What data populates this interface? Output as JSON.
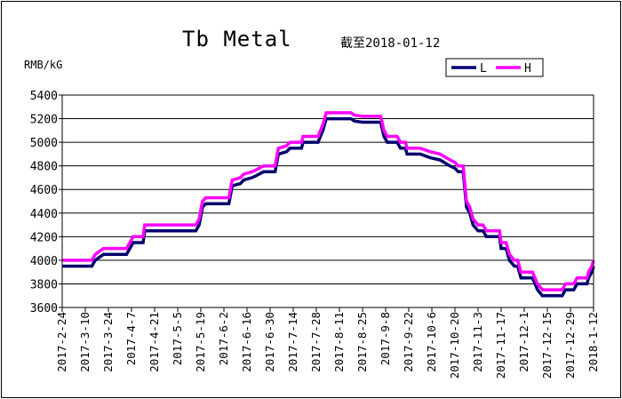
{
  "chart_data": {
    "type": "line",
    "title": "Tb Metal",
    "subtitle": "截至2018-01-12",
    "ylabel": "RMB/kG",
    "xlabel": "",
    "ylim": [
      3600,
      5400
    ],
    "yticks": [
      3600,
      3800,
      4000,
      4200,
      4400,
      4600,
      4800,
      5000,
      5200,
      5400
    ],
    "xlim": [
      "2017-02-24",
      "2018-01-12"
    ],
    "xticks": [
      "2017-2-24",
      "2017-3-10",
      "2017-3-24",
      "2017-4-7",
      "2017-4-21",
      "2017-5-5",
      "2017-5-19",
      "2017-6-2",
      "2017-6-16",
      "2017-6-30",
      "2017-7-14",
      "2017-7-28",
      "2017-8-11",
      "2017-8-25",
      "2017-9-8",
      "2017-9-22",
      "2017-10-6",
      "2017-10-20",
      "2017-11-3",
      "2017-11-17",
      "2017-12-1",
      "2017-12-15",
      "2017-12-29",
      "2018-1-12"
    ],
    "grid": "horizontal",
    "legend_position": "top-right",
    "series": [
      {
        "name": "L",
        "color": "#00006e",
        "points": [
          [
            "2017-02-24",
            3950
          ],
          [
            "2017-03-14",
            3950
          ],
          [
            "2017-03-16",
            4000
          ],
          [
            "2017-03-21",
            4050
          ],
          [
            "2017-04-04",
            4050
          ],
          [
            "2017-04-06",
            4100
          ],
          [
            "2017-04-08",
            4150
          ],
          [
            "2017-04-14",
            4150
          ],
          [
            "2017-04-15",
            4250
          ],
          [
            "2017-05-16",
            4250
          ],
          [
            "2017-05-18",
            4300
          ],
          [
            "2017-05-20",
            4450
          ],
          [
            "2017-05-22",
            4480
          ],
          [
            "2017-06-05",
            4480
          ],
          [
            "2017-06-07",
            4630
          ],
          [
            "2017-06-12",
            4650
          ],
          [
            "2017-06-14",
            4680
          ],
          [
            "2017-06-19",
            4700
          ],
          [
            "2017-06-22",
            4720
          ],
          [
            "2017-06-26",
            4750
          ],
          [
            "2017-07-03",
            4750
          ],
          [
            "2017-07-05",
            4900
          ],
          [
            "2017-07-10",
            4920
          ],
          [
            "2017-07-12",
            4950
          ],
          [
            "2017-07-19",
            4950
          ],
          [
            "2017-07-20",
            5000
          ],
          [
            "2017-07-29",
            5000
          ],
          [
            "2017-08-01",
            5100
          ],
          [
            "2017-08-03",
            5200
          ],
          [
            "2017-08-18",
            5200
          ],
          [
            "2017-08-20",
            5180
          ],
          [
            "2017-08-25",
            5170
          ],
          [
            "2017-09-05",
            5170
          ],
          [
            "2017-09-07",
            5050
          ],
          [
            "2017-09-09",
            5000
          ],
          [
            "2017-09-15",
            5000
          ],
          [
            "2017-09-17",
            4950
          ],
          [
            "2017-09-20",
            4950
          ],
          [
            "2017-09-21",
            4900
          ],
          [
            "2017-09-29",
            4900
          ],
          [
            "2017-10-05",
            4870
          ],
          [
            "2017-10-11",
            4850
          ],
          [
            "2017-10-17",
            4800
          ],
          [
            "2017-10-20",
            4780
          ],
          [
            "2017-10-22",
            4750
          ],
          [
            "2017-10-25",
            4750
          ],
          [
            "2017-10-27",
            4450
          ],
          [
            "2017-10-29",
            4400
          ],
          [
            "2017-10-31",
            4300
          ],
          [
            "2017-11-03",
            4250
          ],
          [
            "2017-11-06",
            4250
          ],
          [
            "2017-11-08",
            4200
          ],
          [
            "2017-11-16",
            4200
          ],
          [
            "2017-11-17",
            4100
          ],
          [
            "2017-11-20",
            4100
          ],
          [
            "2017-11-22",
            4000
          ],
          [
            "2017-11-25",
            3950
          ],
          [
            "2017-11-27",
            3950
          ],
          [
            "2017-11-29",
            3850
          ],
          [
            "2017-12-06",
            3850
          ],
          [
            "2017-12-09",
            3750
          ],
          [
            "2017-12-12",
            3700
          ],
          [
            "2017-12-24",
            3700
          ],
          [
            "2017-12-26",
            3750
          ],
          [
            "2017-12-31",
            3750
          ],
          [
            "2018-01-02",
            3800
          ],
          [
            "2018-01-08",
            3800
          ],
          [
            "2018-01-09",
            3850
          ],
          [
            "2018-01-11",
            3900
          ],
          [
            "2018-01-12",
            3950
          ]
        ]
      },
      {
        "name": "H",
        "color": "#ff00ff",
        "points": [
          [
            "2017-02-24",
            4000
          ],
          [
            "2017-03-14",
            4000
          ],
          [
            "2017-03-16",
            4050
          ],
          [
            "2017-03-21",
            4100
          ],
          [
            "2017-04-04",
            4100
          ],
          [
            "2017-04-06",
            4150
          ],
          [
            "2017-04-08",
            4200
          ],
          [
            "2017-04-14",
            4200
          ],
          [
            "2017-04-15",
            4300
          ],
          [
            "2017-05-16",
            4300
          ],
          [
            "2017-05-18",
            4350
          ],
          [
            "2017-05-20",
            4500
          ],
          [
            "2017-05-22",
            4530
          ],
          [
            "2017-06-05",
            4530
          ],
          [
            "2017-06-07",
            4680
          ],
          [
            "2017-06-12",
            4700
          ],
          [
            "2017-06-14",
            4730
          ],
          [
            "2017-06-19",
            4750
          ],
          [
            "2017-06-22",
            4770
          ],
          [
            "2017-06-26",
            4800
          ],
          [
            "2017-07-03",
            4800
          ],
          [
            "2017-07-05",
            4950
          ],
          [
            "2017-07-10",
            4970
          ],
          [
            "2017-07-12",
            5000
          ],
          [
            "2017-07-19",
            5000
          ],
          [
            "2017-07-20",
            5050
          ],
          [
            "2017-07-29",
            5050
          ],
          [
            "2017-08-01",
            5150
          ],
          [
            "2017-08-03",
            5250
          ],
          [
            "2017-08-18",
            5250
          ],
          [
            "2017-08-20",
            5230
          ],
          [
            "2017-08-25",
            5220
          ],
          [
            "2017-09-05",
            5220
          ],
          [
            "2017-09-07",
            5100
          ],
          [
            "2017-09-09",
            5050
          ],
          [
            "2017-09-15",
            5050
          ],
          [
            "2017-09-17",
            5000
          ],
          [
            "2017-09-20",
            5000
          ],
          [
            "2017-09-21",
            4950
          ],
          [
            "2017-09-29",
            4950
          ],
          [
            "2017-10-05",
            4920
          ],
          [
            "2017-10-11",
            4900
          ],
          [
            "2017-10-17",
            4850
          ],
          [
            "2017-10-20",
            4830
          ],
          [
            "2017-10-22",
            4800
          ],
          [
            "2017-10-25",
            4800
          ],
          [
            "2017-10-27",
            4500
          ],
          [
            "2017-10-29",
            4450
          ],
          [
            "2017-10-31",
            4350
          ],
          [
            "2017-11-03",
            4300
          ],
          [
            "2017-11-06",
            4300
          ],
          [
            "2017-11-08",
            4250
          ],
          [
            "2017-11-16",
            4250
          ],
          [
            "2017-11-17",
            4150
          ],
          [
            "2017-11-20",
            4150
          ],
          [
            "2017-11-22",
            4050
          ],
          [
            "2017-11-25",
            4000
          ],
          [
            "2017-11-27",
            4000
          ],
          [
            "2017-11-29",
            3900
          ],
          [
            "2017-12-06",
            3900
          ],
          [
            "2017-12-09",
            3800
          ],
          [
            "2017-12-12",
            3750
          ],
          [
            "2017-12-24",
            3750
          ],
          [
            "2017-12-26",
            3800
          ],
          [
            "2017-12-31",
            3800
          ],
          [
            "2018-01-02",
            3850
          ],
          [
            "2018-01-08",
            3850
          ],
          [
            "2018-01-09",
            3900
          ],
          [
            "2018-01-11",
            3950
          ],
          [
            "2018-01-12",
            4000
          ]
        ]
      }
    ]
  }
}
